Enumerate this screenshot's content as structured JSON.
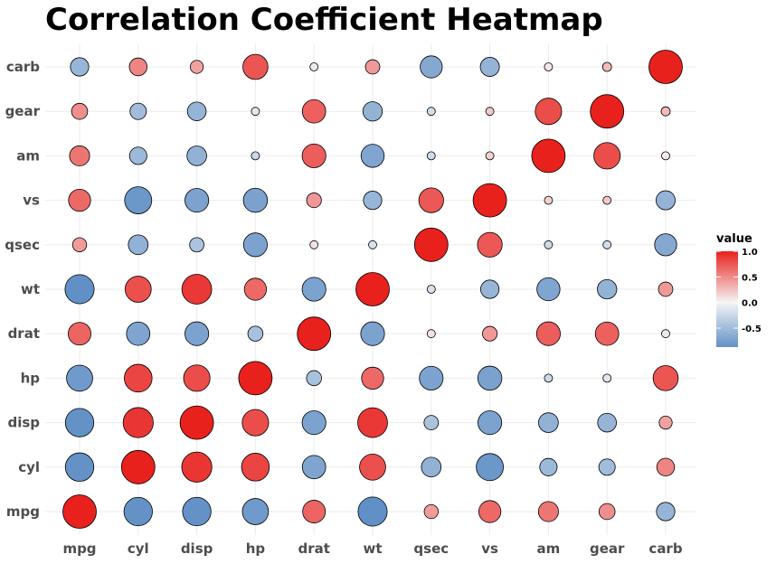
{
  "chart_data": {
    "type": "heatmap",
    "title": "Correlation Coefficient Heatmap",
    "xlabel": "",
    "ylabel": "",
    "variables": [
      "mpg",
      "cyl",
      "disp",
      "hp",
      "drat",
      "wt",
      "qsec",
      "vs",
      "am",
      "gear",
      "carb"
    ],
    "matrix": [
      [
        1.0,
        -0.85,
        -0.85,
        -0.78,
        0.68,
        -0.87,
        0.42,
        0.66,
        0.6,
        0.48,
        -0.55
      ],
      [
        -0.85,
        1.0,
        0.9,
        0.83,
        -0.7,
        0.78,
        -0.59,
        -0.81,
        -0.52,
        -0.49,
        0.53
      ],
      [
        -0.85,
        0.9,
        1.0,
        0.79,
        -0.71,
        0.89,
        -0.43,
        -0.71,
        -0.59,
        -0.56,
        0.39
      ],
      [
        -0.78,
        0.83,
        0.79,
        1.0,
        -0.45,
        0.66,
        -0.71,
        -0.72,
        -0.24,
        -0.13,
        0.75
      ],
      [
        0.68,
        -0.7,
        -0.71,
        -0.45,
        1.0,
        -0.71,
        0.09,
        0.44,
        0.71,
        0.7,
        -0.09
      ],
      [
        -0.87,
        0.78,
        0.89,
        0.66,
        -0.71,
        1.0,
        -0.17,
        -0.55,
        -0.69,
        -0.58,
        0.43
      ],
      [
        0.42,
        -0.59,
        -0.43,
        -0.71,
        0.09,
        -0.17,
        1.0,
        0.74,
        -0.23,
        -0.21,
        -0.66
      ],
      [
        0.66,
        -0.81,
        -0.71,
        -0.72,
        0.44,
        -0.55,
        0.74,
        1.0,
        0.17,
        0.21,
        -0.57
      ],
      [
        0.6,
        -0.52,
        -0.59,
        -0.24,
        0.71,
        -0.69,
        -0.23,
        0.17,
        1.0,
        0.79,
        0.06
      ],
      [
        0.48,
        -0.49,
        -0.56,
        -0.13,
        0.7,
        -0.58,
        -0.21,
        0.21,
        0.79,
        1.0,
        0.27
      ],
      [
        -0.55,
        0.53,
        0.39,
        0.75,
        -0.09,
        0.43,
        -0.66,
        -0.57,
        0.06,
        0.27,
        1.0
      ]
    ],
    "value_range": [
      -0.87,
      1.0
    ],
    "size_encoding": "absolute value",
    "grid": true,
    "legend": {
      "title": "value",
      "placement": "right",
      "ticks": [
        "1.0",
        "0.5",
        "0.0",
        "-0.5"
      ],
      "tick_values": [
        1.0,
        0.5,
        0.0,
        -0.5
      ],
      "colors": {
        "low": "#6190c6",
        "mid": "#f5f5f5",
        "high": "#e8211d"
      }
    }
  }
}
